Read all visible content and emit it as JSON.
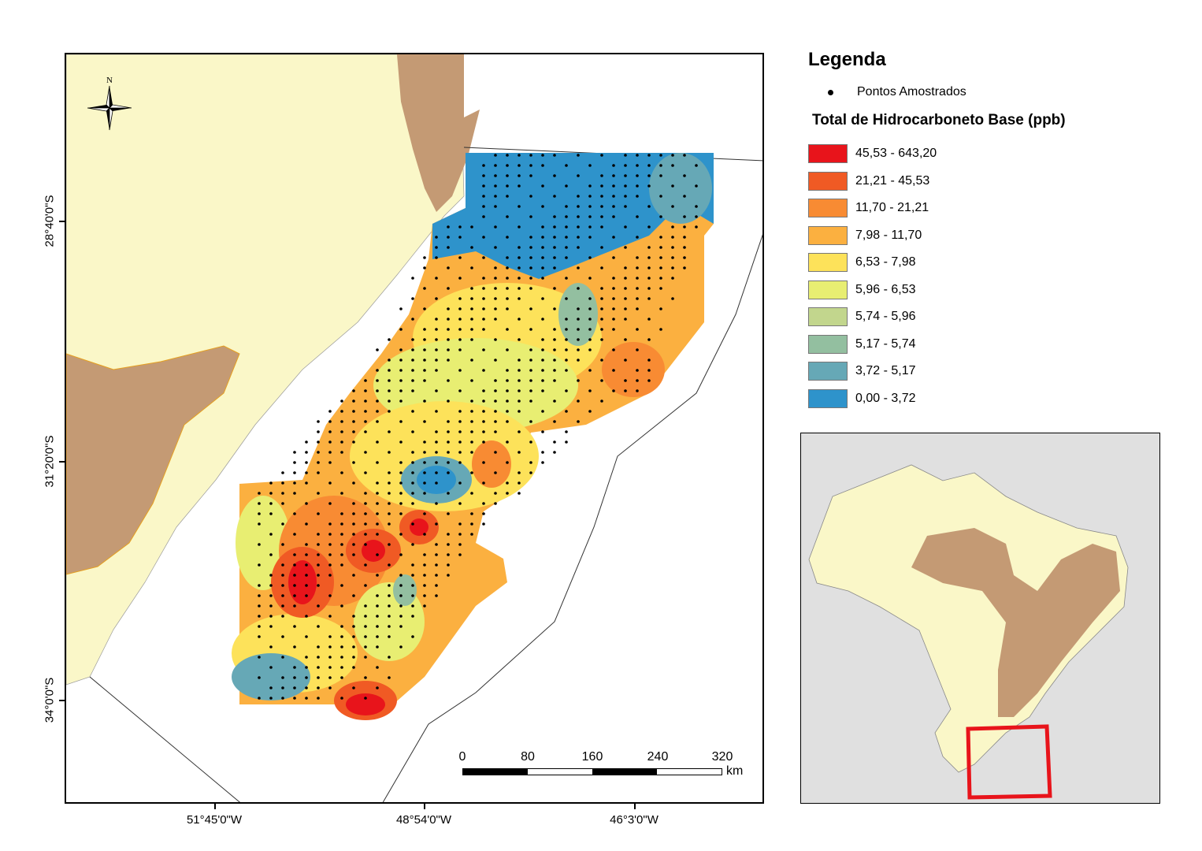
{
  "legend": {
    "title": "Legenda",
    "points_label": "Pontos Amostrados",
    "subtitle": "Total de Hidrocarboneto Base (ppb)",
    "classes": [
      {
        "label": "45,53 - 643,20",
        "color": "#e8141b"
      },
      {
        "label": "21,21 - 45,53",
        "color": "#f05a24"
      },
      {
        "label": "11,70 - 21,21",
        "color": "#f88b33"
      },
      {
        "label": "7,98 - 11,70",
        "color": "#fbb040"
      },
      {
        "label": "6,53 - 7,98",
        "color": "#fde25a"
      },
      {
        "label": "5,96 - 6,53",
        "color": "#e8ee72"
      },
      {
        "label": "5,74 - 5,96",
        "color": "#c2d68d"
      },
      {
        "label": "5,17 - 5,74",
        "color": "#93bfa0"
      },
      {
        "label": "3,72 - 5,17",
        "color": "#66a8b6"
      },
      {
        "label": "0,00 - 3,72",
        "color": "#2e93cb"
      }
    ]
  },
  "axes": {
    "lat": [
      "28°40'0\"S",
      "31°20'0\"S",
      "34°0'0\"S"
    ],
    "lon": [
      "51°45'0\"W",
      "48°54'0\"W",
      "46°3'0\"W"
    ]
  },
  "north_label": "N",
  "scale": {
    "ticks": [
      "0",
      "80",
      "160",
      "240",
      "320"
    ],
    "unit": "km"
  },
  "colors": {
    "land": "#faf7c8",
    "relief": "#c49a74",
    "inset_red": "#e8141b"
  }
}
